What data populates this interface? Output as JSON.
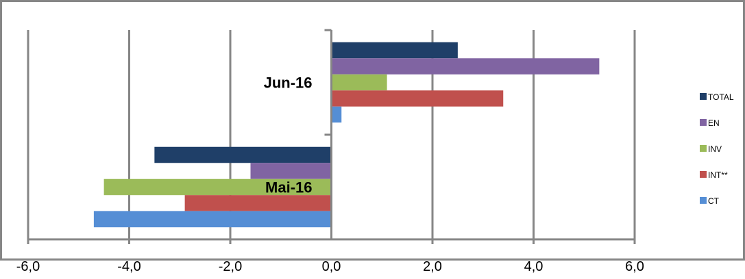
{
  "chart_data": {
    "type": "bar",
    "orientation": "horizontal",
    "categories": [
      "Mai-16",
      "Jun-16"
    ],
    "series": [
      {
        "name": "TOTAL",
        "color": "#1F3F68",
        "values": [
          -3.5,
          2.5
        ]
      },
      {
        "name": "EN",
        "color": "#8064A2",
        "values": [
          -1.6,
          5.3
        ]
      },
      {
        "name": "INV",
        "color": "#9BBB59",
        "values": [
          -4.5,
          1.1
        ]
      },
      {
        "name": "INT**",
        "color": "#C0504D",
        "values": [
          -2.9,
          3.4
        ]
      },
      {
        "name": "CT",
        "color": "#558ED5",
        "values": [
          -4.7,
          0.2
        ]
      }
    ],
    "xlim": [
      -6,
      6
    ],
    "xticks": [
      -6,
      -4,
      -2,
      0,
      2,
      4,
      6
    ],
    "xtick_labels": [
      "-6,0",
      "-4,0",
      "-2,0",
      "0,0",
      "2,0",
      "4,0",
      "6,0"
    ],
    "grid": true,
    "legend_position": "right",
    "title": "",
    "xlabel": "",
    "ylabel": ""
  }
}
